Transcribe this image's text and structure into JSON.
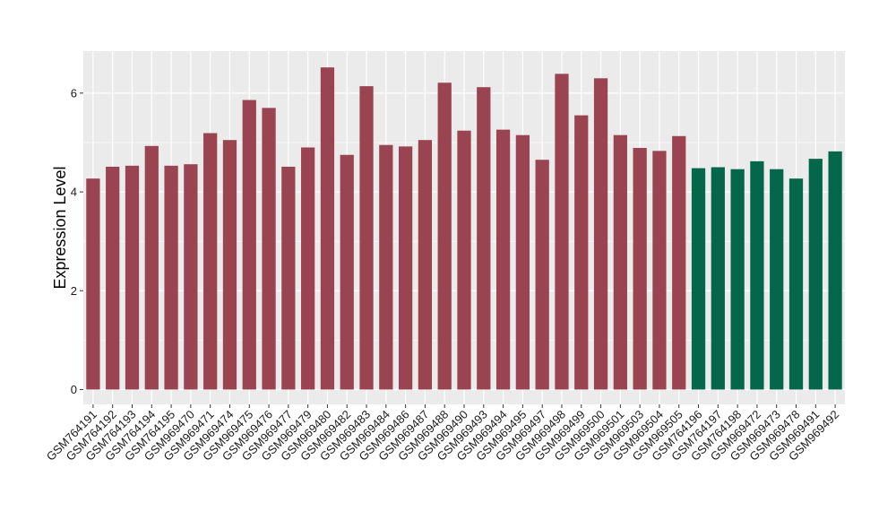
{
  "colors": {
    "panel_background": "#EBEBEB",
    "grid": "#FFFFFF",
    "group_a": "#9B4451",
    "group_b": "#05674A"
  },
  "chart_data": {
    "type": "bar",
    "xlabel": "",
    "ylabel": "Expression Level",
    "ylim": [
      -0.3,
      6.85
    ],
    "yticks": [
      0,
      2,
      4,
      6
    ],
    "grid": true,
    "legend": "none",
    "categories": [
      "GSM764191",
      "GSM764192",
      "GSM764193",
      "GSM764194",
      "GSM764195",
      "GSM969470",
      "GSM969471",
      "GSM969474",
      "GSM969475",
      "GSM969476",
      "GSM969477",
      "GSM969479",
      "GSM969480",
      "GSM969482",
      "GSM969483",
      "GSM969484",
      "GSM969486",
      "GSM969487",
      "GSM969488",
      "GSM969490",
      "GSM969493",
      "GSM969494",
      "GSM969495",
      "GSM969497",
      "GSM969498",
      "GSM969499",
      "GSM969500",
      "GSM969501",
      "GSM969503",
      "GSM969504",
      "GSM969505",
      "GSM764196",
      "GSM764197",
      "GSM764198",
      "GSM969472",
      "GSM969473",
      "GSM969478",
      "GSM969491",
      "GSM969492"
    ],
    "values": [
      4.27,
      4.51,
      4.53,
      4.93,
      4.53,
      4.56,
      5.19,
      5.05,
      5.86,
      5.7,
      4.51,
      4.9,
      6.52,
      4.75,
      6.14,
      4.95,
      4.92,
      5.05,
      6.21,
      5.24,
      6.12,
      5.26,
      5.15,
      4.65,
      6.39,
      5.55,
      6.3,
      5.15,
      4.89,
      4.83,
      5.13,
      4.48,
      4.5,
      4.46,
      4.62,
      4.46,
      4.27,
      4.67,
      4.82
    ],
    "groups": [
      "a",
      "a",
      "a",
      "a",
      "a",
      "a",
      "a",
      "a",
      "a",
      "a",
      "a",
      "a",
      "a",
      "a",
      "a",
      "a",
      "a",
      "a",
      "a",
      "a",
      "a",
      "a",
      "a",
      "a",
      "a",
      "a",
      "a",
      "a",
      "a",
      "a",
      "a",
      "b",
      "b",
      "b",
      "b",
      "b",
      "b",
      "b",
      "b"
    ]
  }
}
